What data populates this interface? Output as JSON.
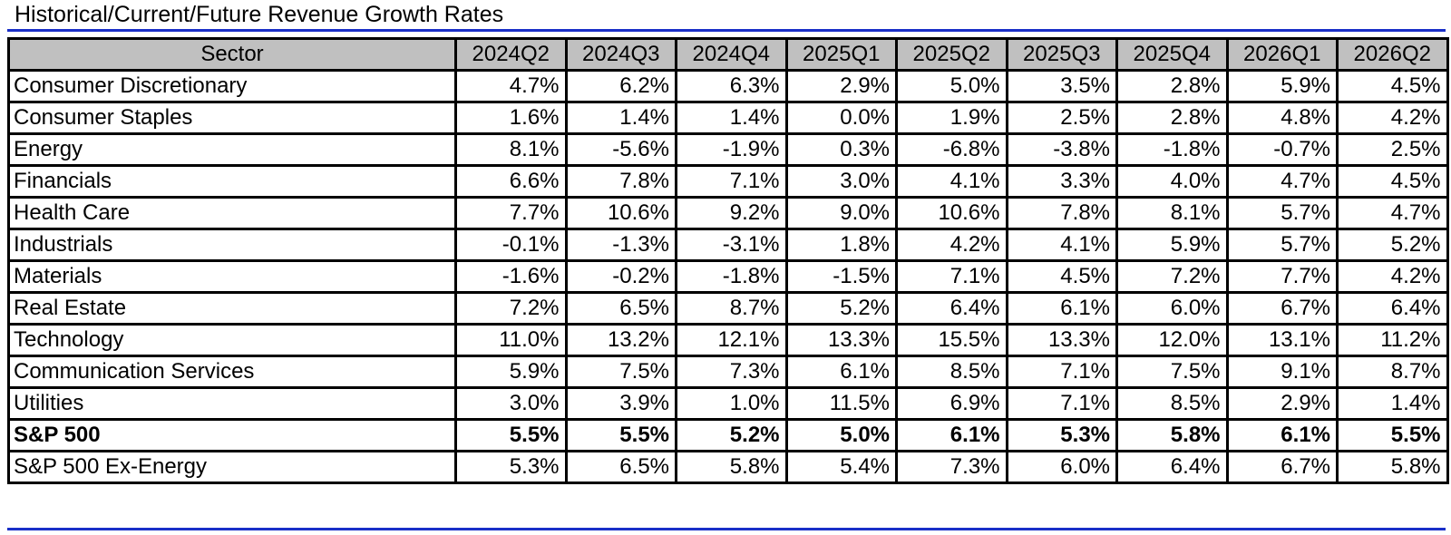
{
  "title": "Historical/Current/Future Revenue Growth Rates",
  "table": {
    "header": [
      "Sector",
      "2024Q2",
      "2024Q3",
      "2024Q4",
      "2025Q1",
      "2025Q2",
      "2025Q3",
      "2025Q4",
      "2026Q1",
      "2026Q2"
    ],
    "rows": [
      {
        "sector": "Consumer Discretionary",
        "values": [
          "4.7%",
          "6.2%",
          "6.3%",
          "2.9%",
          "5.0%",
          "3.5%",
          "2.8%",
          "5.9%",
          "4.5%"
        ]
      },
      {
        "sector": "Consumer Staples",
        "values": [
          "1.6%",
          "1.4%",
          "1.4%",
          "0.0%",
          "1.9%",
          "2.5%",
          "2.8%",
          "4.8%",
          "4.2%"
        ]
      },
      {
        "sector": "Energy",
        "values": [
          "8.1%",
          "-5.6%",
          "-1.9%",
          "0.3%",
          "-6.8%",
          "-3.8%",
          "-1.8%",
          "-0.7%",
          "2.5%"
        ]
      },
      {
        "sector": "Financials",
        "values": [
          "6.6%",
          "7.8%",
          "7.1%",
          "3.0%",
          "4.1%",
          "3.3%",
          "4.0%",
          "4.7%",
          "4.5%"
        ]
      },
      {
        "sector": "Health Care",
        "values": [
          "7.7%",
          "10.6%",
          "9.2%",
          "9.0%",
          "10.6%",
          "7.8%",
          "8.1%",
          "5.7%",
          "4.7%"
        ]
      },
      {
        "sector": "Industrials",
        "values": [
          "-0.1%",
          "-1.3%",
          "-3.1%",
          "1.8%",
          "4.2%",
          "4.1%",
          "5.9%",
          "5.7%",
          "5.2%"
        ]
      },
      {
        "sector": "Materials",
        "values": [
          "-1.6%",
          "-0.2%",
          "-1.8%",
          "-1.5%",
          "7.1%",
          "4.5%",
          "7.2%",
          "7.7%",
          "4.2%"
        ]
      },
      {
        "sector": "Real Estate",
        "values": [
          "7.2%",
          "6.5%",
          "8.7%",
          "5.2%",
          "6.4%",
          "6.1%",
          "6.0%",
          "6.7%",
          "6.4%"
        ]
      },
      {
        "sector": "Technology",
        "values": [
          "11.0%",
          "13.2%",
          "12.1%",
          "13.3%",
          "15.5%",
          "13.3%",
          "12.0%",
          "13.1%",
          "11.2%"
        ]
      },
      {
        "sector": "Communication Services",
        "values": [
          "5.9%",
          "7.5%",
          "7.3%",
          "6.1%",
          "8.5%",
          "7.1%",
          "7.5%",
          "9.1%",
          "8.7%"
        ]
      },
      {
        "sector": "Utilities",
        "values": [
          "3.0%",
          "3.9%",
          "1.0%",
          "11.5%",
          "6.9%",
          "7.1%",
          "8.5%",
          "2.9%",
          "1.4%"
        ]
      },
      {
        "sector": "S&P 500",
        "values": [
          "5.5%",
          "5.5%",
          "5.2%",
          "5.0%",
          "6.1%",
          "5.3%",
          "5.8%",
          "6.1%",
          "5.5%"
        ],
        "bold": true
      },
      {
        "sector": "S&P 500 Ex-Energy",
        "values": [
          "5.3%",
          "6.5%",
          "5.8%",
          "5.4%",
          "7.3%",
          "6.0%",
          "6.4%",
          "6.7%",
          "5.8%"
        ]
      }
    ]
  },
  "colors": {
    "rule": "#1a2fc8",
    "header_fill": "#c0c0c0",
    "border": "#000000"
  }
}
